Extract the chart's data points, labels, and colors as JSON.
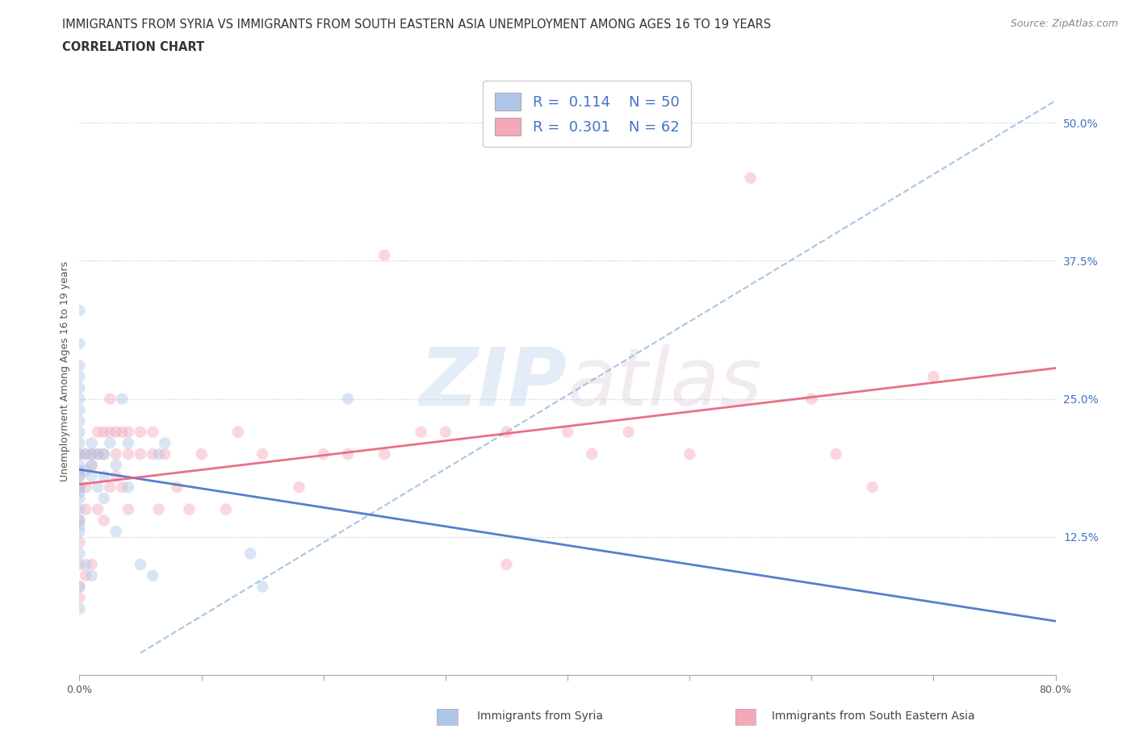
{
  "title_line1": "IMMIGRANTS FROM SYRIA VS IMMIGRANTS FROM SOUTH EASTERN ASIA UNEMPLOYMENT AMONG AGES 16 TO 19 YEARS",
  "title_line2": "CORRELATION CHART",
  "source_text": "Source: ZipAtlas.com",
  "ylabel": "Unemployment Among Ages 16 to 19 years",
  "xlim": [
    0.0,
    0.8
  ],
  "ylim": [
    0.0,
    0.55
  ],
  "xticks": [
    0.0,
    0.1,
    0.2,
    0.3,
    0.4,
    0.5,
    0.6,
    0.7,
    0.8
  ],
  "xticklabels_visible": [
    "0.0%",
    "",
    "",
    "",
    "",
    "",
    "",
    "",
    "80.0%"
  ],
  "yticks": [
    0.0,
    0.125,
    0.25,
    0.375,
    0.5
  ],
  "yticklabels": [
    "",
    "12.5%",
    "25.0%",
    "37.5%",
    "50.0%"
  ],
  "grid_color": "#cccccc",
  "background_color": "#ffffff",
  "watermark_text": "ZIPatlas",
  "syria_color": "#aec6e8",
  "sea_color": "#f4a8b8",
  "syria_line_color": "#4472c4",
  "sea_line_color": "#e8607a",
  "dashed_line_color": "#8ab4d8",
  "legend_syria_R": "0.114",
  "legend_syria_N": "50",
  "legend_sea_R": "0.301",
  "legend_sea_N": "62",
  "syria_points_x": [
    0.0,
    0.0,
    0.0,
    0.0,
    0.0,
    0.0,
    0.0,
    0.0,
    0.0,
    0.0,
    0.0,
    0.0,
    0.0,
    0.0,
    0.0,
    0.0,
    0.0,
    0.0,
    0.0,
    0.0,
    0.0,
    0.0,
    0.005,
    0.005,
    0.005,
    0.01,
    0.01,
    0.01,
    0.01,
    0.01,
    0.015,
    0.015,
    0.02,
    0.02,
    0.02,
    0.025,
    0.03,
    0.03,
    0.035,
    0.04,
    0.04,
    0.05,
    0.06,
    0.065,
    0.07,
    0.14,
    0.15,
    0.22,
    0.0,
    0.0
  ],
  "syria_points_y": [
    0.33,
    0.3,
    0.28,
    0.27,
    0.26,
    0.25,
    0.24,
    0.23,
    0.22,
    0.21,
    0.2,
    0.19,
    0.185,
    0.18,
    0.17,
    0.165,
    0.16,
    0.15,
    0.14,
    0.135,
    0.13,
    0.11,
    0.2,
    0.185,
    0.1,
    0.21,
    0.2,
    0.19,
    0.18,
    0.09,
    0.2,
    0.17,
    0.2,
    0.18,
    0.16,
    0.21,
    0.19,
    0.13,
    0.25,
    0.21,
    0.17,
    0.1,
    0.09,
    0.2,
    0.21,
    0.11,
    0.08,
    0.25,
    0.08,
    0.06
  ],
  "sea_points_x": [
    0.0,
    0.0,
    0.0,
    0.0,
    0.0,
    0.0,
    0.0,
    0.0,
    0.005,
    0.005,
    0.005,
    0.005,
    0.01,
    0.01,
    0.01,
    0.015,
    0.015,
    0.015,
    0.02,
    0.02,
    0.02,
    0.025,
    0.025,
    0.025,
    0.03,
    0.03,
    0.03,
    0.035,
    0.035,
    0.04,
    0.04,
    0.04,
    0.05,
    0.05,
    0.06,
    0.06,
    0.065,
    0.07,
    0.08,
    0.09,
    0.1,
    0.12,
    0.13,
    0.15,
    0.18,
    0.2,
    0.22,
    0.25,
    0.28,
    0.3,
    0.35,
    0.4,
    0.42,
    0.45,
    0.5,
    0.55,
    0.6,
    0.62,
    0.65,
    0.7,
    0.25,
    0.35
  ],
  "sea_points_y": [
    0.2,
    0.18,
    0.17,
    0.14,
    0.12,
    0.1,
    0.08,
    0.07,
    0.2,
    0.17,
    0.15,
    0.09,
    0.2,
    0.19,
    0.1,
    0.22,
    0.2,
    0.15,
    0.22,
    0.2,
    0.14,
    0.25,
    0.22,
    0.17,
    0.22,
    0.2,
    0.18,
    0.22,
    0.17,
    0.22,
    0.2,
    0.15,
    0.22,
    0.2,
    0.22,
    0.2,
    0.15,
    0.2,
    0.17,
    0.15,
    0.2,
    0.15,
    0.22,
    0.2,
    0.17,
    0.2,
    0.2,
    0.2,
    0.22,
    0.22,
    0.22,
    0.22,
    0.2,
    0.22,
    0.2,
    0.45,
    0.25,
    0.2,
    0.17,
    0.27,
    0.38,
    0.1
  ],
  "title_fontsize": 10.5,
  "subtitle_fontsize": 10.5,
  "axis_label_fontsize": 9,
  "tick_fontsize": 9,
  "legend_fontsize": 13,
  "marker_size": 110,
  "marker_alpha": 0.45,
  "line_width": 2.0,
  "dashed_line_x0": 0.05,
  "dashed_line_y0": 0.02,
  "dashed_line_x1": 0.8,
  "dashed_line_y1": 0.52
}
